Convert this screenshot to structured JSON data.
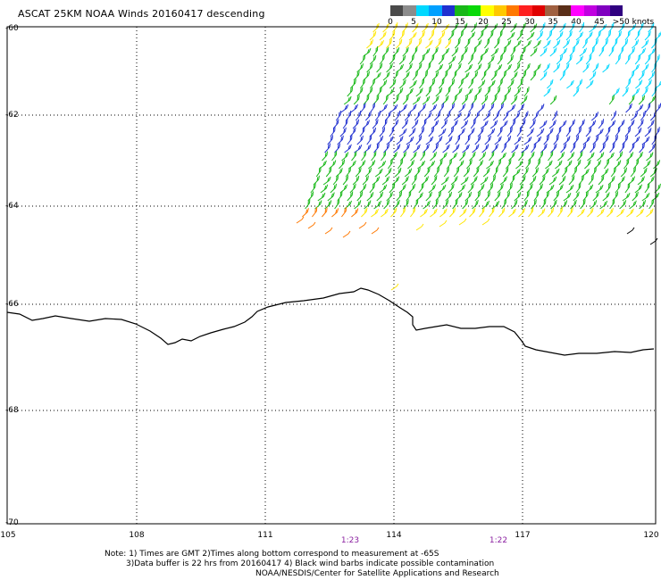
{
  "title": "ASCAT 25KM NOAA Winds 20160417 descending",
  "colorbar": {
    "segments": [
      "#4a4a4a",
      "#8c8c8c",
      "#00d8ff",
      "#00a0ff",
      "#2030d0",
      "#18b818",
      "#08d808",
      "#ffff00",
      "#ffc800",
      "#ff7800",
      "#ff2020",
      "#e00000",
      "#a06040",
      "#5a2e18",
      "#ff00ff",
      "#c000e0",
      "#8000c0",
      "#300080"
    ],
    "labels": [
      "0",
      "5",
      "10",
      "15",
      "20",
      "25",
      "30",
      "35",
      "40",
      "45",
      ">50 knots"
    ]
  },
  "axes": {
    "lat_labels": [
      "-60",
      "-62",
      "-64",
      "-66",
      "-68",
      "-70"
    ],
    "lon_labels": [
      "105",
      "108",
      "111",
      "114",
      "117",
      "120"
    ]
  },
  "time_labels": [
    "1:23",
    "1:22"
  ],
  "notes": [
    "Note: 1) Times are GMT 2)Times along bottom correspond to measurement at -65S",
    "3)Data buffer is 22 hrs from 20160417 4) Black wind barbs indicate possible contamination",
    "NOAA/NESDIS/Center for Satellite Applications and Research"
  ],
  "colors": {
    "grid": "#000000",
    "coastline": "#000000",
    "time_label": "#8a1fa0",
    "wind_low": "#00d8ff",
    "wind_mid_blue": "#2030d0",
    "wind_green": "#18b818",
    "wind_yellow": "#ffe600",
    "wind_orange": "#ff7800",
    "contamination": "#000000"
  }
}
